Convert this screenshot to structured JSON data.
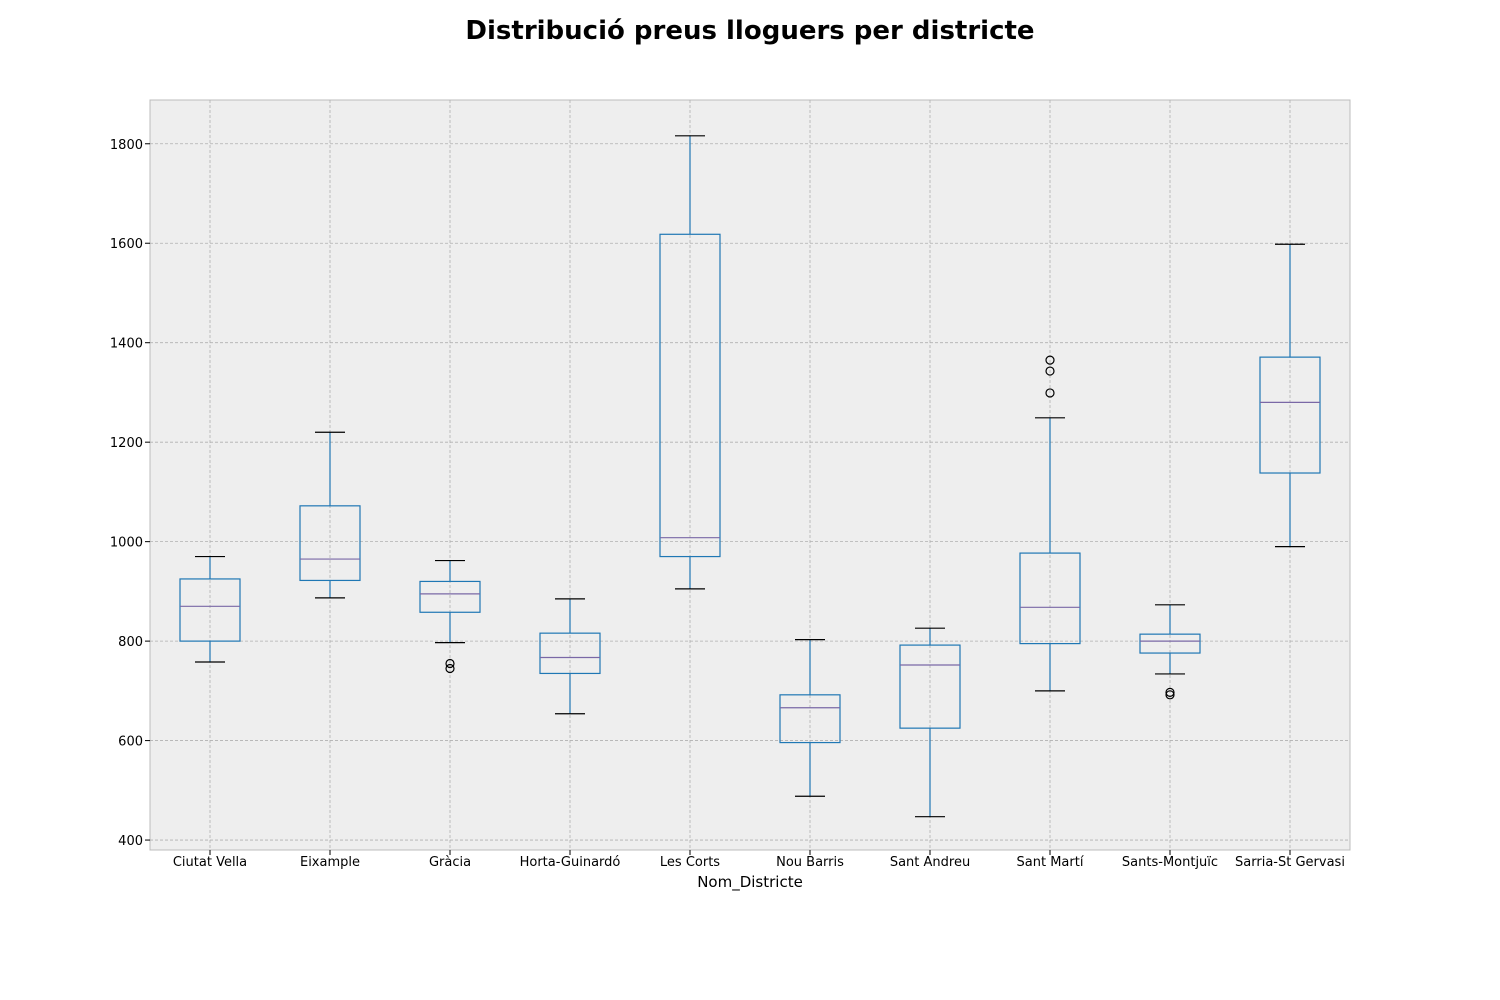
{
  "chart_data": {
    "type": "box",
    "title": "Distribució preus lloguers per districte",
    "xlabel": "Nom_Districte",
    "ylabel": "",
    "ylim": [
      380,
      1888
    ],
    "yticks": [
      400,
      600,
      800,
      1000,
      1200,
      1400,
      1600,
      1800
    ],
    "grid": true,
    "colors": {
      "box": "#1f77b4",
      "median": "#7a68a6",
      "whisker_cap": "#000000",
      "flier": "#000000",
      "background": "#eeeeee",
      "grid": "#b0b0b0"
    },
    "boxes": [
      {
        "category": "Ciutat Vella",
        "whisker_low": 758,
        "q1": 800,
        "median": 870,
        "q3": 925,
        "whisker_high": 970,
        "outliers": []
      },
      {
        "category": "Eixample",
        "whisker_low": 887,
        "q1": 922,
        "median": 965,
        "q3": 1072,
        "whisker_high": 1220,
        "outliers": []
      },
      {
        "category": "Gràcia",
        "whisker_low": 797,
        "q1": 858,
        "median": 895,
        "q3": 920,
        "whisker_high": 962,
        "outliers": [
          755,
          745
        ]
      },
      {
        "category": "Horta-Guinardó",
        "whisker_low": 654,
        "q1": 735,
        "median": 767,
        "q3": 816,
        "whisker_high": 885,
        "outliers": []
      },
      {
        "category": "Les Corts",
        "whisker_low": 905,
        "q1": 970,
        "median": 1008,
        "q3": 1618,
        "whisker_high": 1816,
        "outliers": []
      },
      {
        "category": "Nou Barris",
        "whisker_low": 488,
        "q1": 596,
        "median": 666,
        "q3": 692,
        "whisker_high": 803,
        "outliers": []
      },
      {
        "category": "Sant Andreu",
        "whisker_low": 447,
        "q1": 625,
        "median": 752,
        "q3": 792,
        "whisker_high": 826,
        "outliers": []
      },
      {
        "category": "Sant Martí",
        "whisker_low": 700,
        "q1": 795,
        "median": 868,
        "q3": 977,
        "whisker_high": 1249,
        "outliers": [
          1365,
          1343,
          1299
        ]
      },
      {
        "category": "Sants-Montjuïc",
        "whisker_low": 734,
        "q1": 776,
        "median": 800,
        "q3": 814,
        "whisker_high": 873,
        "outliers": [
          697,
          692
        ]
      },
      {
        "category": "Sarria-St Gervasi",
        "whisker_low": 990,
        "q1": 1138,
        "median": 1280,
        "q3": 1371,
        "whisker_high": 1598,
        "outliers": []
      }
    ]
  }
}
